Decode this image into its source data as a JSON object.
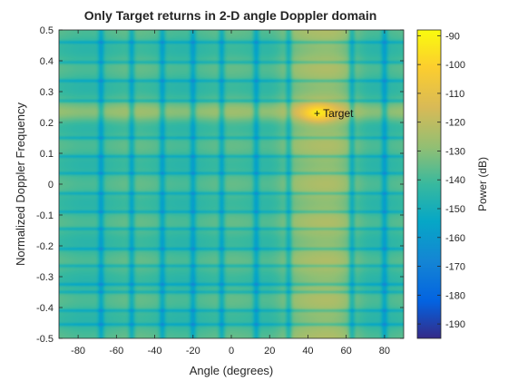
{
  "chart_data": {
    "type": "heatmap",
    "title": "Only Target returns in 2-D angle Doppler domain",
    "xlabel": "Angle (degrees)",
    "ylabel": "Normalized Doppler Frequency",
    "xlim": [
      -90,
      90
    ],
    "ylim": [
      -0.5,
      0.5
    ],
    "xticks": [
      -80,
      -60,
      -40,
      -20,
      0,
      20,
      40,
      60,
      80
    ],
    "yticks": [
      -0.5,
      -0.4,
      -0.3,
      -0.2,
      -0.1,
      0,
      0.1,
      0.2,
      0.3,
      0.4,
      0.5
    ],
    "grid": false,
    "colorbar": {
      "label": "Power (dB)",
      "range": [
        -195,
        -88
      ],
      "ticks": [
        -190,
        -180,
        -170,
        -160,
        -150,
        -140,
        -130,
        -120,
        -110,
        -100,
        -90
      ],
      "colormap": "parula"
    },
    "target": {
      "angle": 45,
      "doppler": 0.23,
      "power_db": -90
    },
    "spectral_nulls": {
      "angles": [
        -68,
        -52,
        -36,
        -20,
        -5,
        13,
        30,
        63,
        80
      ],
      "dopplers": [
        -0.455,
        -0.41,
        -0.35,
        -0.325,
        -0.265,
        -0.21,
        -0.145,
        -0.09,
        -0.03,
        0.035,
        0.09,
        0.15,
        0.27,
        0.335,
        0.395,
        0.46
      ]
    },
    "annotations": [
      {
        "text": "+ Target",
        "x": 45,
        "y": 0.23
      }
    ]
  }
}
